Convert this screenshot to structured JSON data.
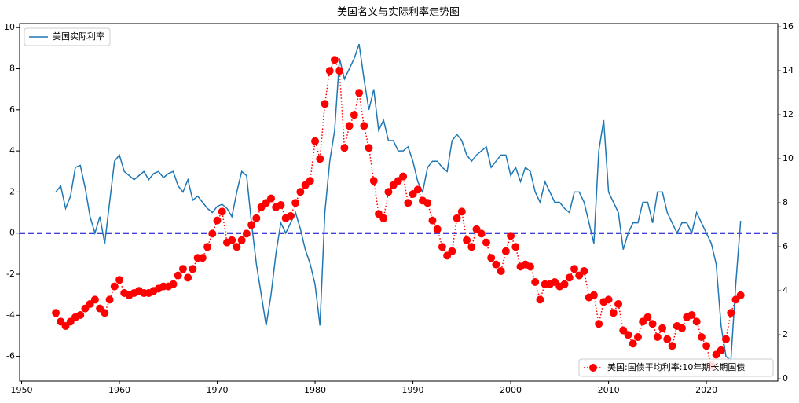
{
  "chart_data": {
    "type": "line",
    "title": "美国名义与实际利率走势图",
    "x": [
      1953.5,
      1954,
      1954.5,
      1955,
      1955.5,
      1956,
      1956.5,
      1957,
      1957.5,
      1958,
      1958.5,
      1959,
      1959.5,
      1960,
      1960.5,
      1961,
      1961.5,
      1962,
      1962.5,
      1963,
      1963.5,
      1964,
      1964.5,
      1965,
      1965.5,
      1966,
      1966.5,
      1967,
      1967.5,
      1968,
      1968.5,
      1969,
      1969.5,
      1970,
      1970.5,
      1971,
      1971.5,
      1972,
      1972.5,
      1973,
      1973.5,
      1974,
      1974.5,
      1975,
      1975.5,
      1976,
      1976.5,
      1977,
      1977.5,
      1978,
      1978.5,
      1979,
      1979.5,
      1980,
      1980.5,
      1981,
      1981.5,
      1982,
      1982.5,
      1983,
      1983.5,
      1984,
      1984.5,
      1985,
      1985.5,
      1986,
      1986.5,
      1987,
      1987.5,
      1988,
      1988.5,
      1989,
      1989.5,
      1990,
      1990.5,
      1991,
      1991.5,
      1992,
      1992.5,
      1993,
      1993.5,
      1994,
      1994.5,
      1995,
      1995.5,
      1996,
      1996.5,
      1997,
      1997.5,
      1998,
      1998.5,
      1999,
      1999.5,
      2000,
      2000.5,
      2001,
      2001.5,
      2002,
      2002.5,
      2003,
      2003.5,
      2004,
      2004.5,
      2005,
      2005.5,
      2006,
      2006.5,
      2007,
      2007.5,
      2008,
      2008.5,
      2009,
      2009.5,
      2010,
      2010.5,
      2011,
      2011.5,
      2012,
      2012.5,
      2013,
      2013.5,
      2014,
      2014.5,
      2015,
      2015.5,
      2016,
      2016.5,
      2017,
      2017.5,
      2018,
      2018.5,
      2019,
      2019.5,
      2020,
      2020.5,
      2021,
      2021.5,
      2022,
      2022.5,
      2023,
      2023.5
    ],
    "series": [
      {
        "name": "美国实际利率",
        "color": "#1f77b4",
        "axis": "y",
        "legend": "upper left",
        "values": [
          2.0,
          2.3,
          1.2,
          1.8,
          3.2,
          3.3,
          2.2,
          0.8,
          0.0,
          0.8,
          -0.5,
          1.5,
          3.5,
          3.8,
          3.0,
          2.8,
          2.6,
          2.8,
          3.0,
          2.6,
          2.9,
          3.0,
          2.7,
          2.9,
          3.0,
          2.3,
          2.0,
          2.6,
          1.6,
          1.8,
          1.5,
          1.2,
          1.0,
          1.3,
          1.4,
          1.2,
          0.8,
          2.0,
          3.0,
          2.8,
          0.5,
          -1.5,
          -3.0,
          -4.5,
          -3.0,
          -1.0,
          0.5,
          0.0,
          0.5,
          1.0,
          0.2,
          -0.8,
          -1.5,
          -2.5,
          -4.5,
          1.0,
          3.5,
          5.0,
          8.5,
          7.5,
          8.0,
          8.5,
          9.2,
          7.5,
          6.0,
          7.0,
          5.0,
          5.5,
          4.5,
          4.5,
          4.0,
          4.0,
          4.2,
          3.5,
          2.5,
          2.0,
          3.2,
          3.5,
          3.5,
          3.2,
          3.0,
          4.5,
          4.8,
          4.5,
          3.8,
          3.5,
          3.8,
          4.0,
          4.2,
          3.2,
          3.5,
          3.8,
          3.8,
          2.8,
          3.2,
          2.5,
          3.2,
          3.0,
          2.0,
          1.5,
          2.5,
          2.0,
          1.5,
          1.5,
          1.2,
          1.0,
          2.0,
          2.0,
          1.5,
          0.5,
          -0.5,
          4.0,
          5.5,
          2.0,
          1.5,
          1.0,
          -0.8,
          0.0,
          0.5,
          0.5,
          1.5,
          1.5,
          0.5,
          2.0,
          2.0,
          1.0,
          0.5,
          0.0,
          0.5,
          0.5,
          0.0,
          1.0,
          0.5,
          0.0,
          -0.5,
          -1.5,
          -4.5,
          -6.0,
          -6.2,
          -2.5,
          0.6
        ]
      },
      {
        "name": "美国:国债平均利率:10年期长期国债",
        "color": "#ff0000",
        "axis": "y2",
        "legend": "lower right",
        "values": [
          3.0,
          2.6,
          2.4,
          2.6,
          2.8,
          2.9,
          3.2,
          3.4,
          3.6,
          3.2,
          3.0,
          3.6,
          4.2,
          4.5,
          3.9,
          3.8,
          3.9,
          4.0,
          3.9,
          3.9,
          4.0,
          4.1,
          4.2,
          4.2,
          4.3,
          4.7,
          5.0,
          4.6,
          5.0,
          5.5,
          5.5,
          6.0,
          6.6,
          7.2,
          7.6,
          6.2,
          6.3,
          6.0,
          6.3,
          6.6,
          7.0,
          7.3,
          7.8,
          8.0,
          8.2,
          7.8,
          7.9,
          7.3,
          7.4,
          8.0,
          8.5,
          8.8,
          9.0,
          10.8,
          10.0,
          12.5,
          14.0,
          14.5,
          14.0,
          10.5,
          11.5,
          12.0,
          13.0,
          11.5,
          10.5,
          9.0,
          7.5,
          7.3,
          8.5,
          8.8,
          9.0,
          9.2,
          8.0,
          8.4,
          8.6,
          8.1,
          8.0,
          7.2,
          6.8,
          6.0,
          5.6,
          5.8,
          7.3,
          7.6,
          6.3,
          6.0,
          6.8,
          6.6,
          6.2,
          5.5,
          5.2,
          4.9,
          5.8,
          6.5,
          6.0,
          5.1,
          5.2,
          5.1,
          4.4,
          3.6,
          4.3,
          4.3,
          4.4,
          4.2,
          4.3,
          4.6,
          5.0,
          4.7,
          4.9,
          3.7,
          3.8,
          2.5,
          3.5,
          3.6,
          3.0,
          3.4,
          2.2,
          2.0,
          1.6,
          1.9,
          2.6,
          2.8,
          2.5,
          1.9,
          2.3,
          1.8,
          1.5,
          2.4,
          2.3,
          2.8,
          2.9,
          2.6,
          1.9,
          1.5,
          0.6,
          1.1,
          1.3,
          1.8,
          3.0,
          3.6,
          3.8
        ]
      }
    ],
    "hlines": [
      {
        "value": 0,
        "color": "#0000cc"
      }
    ],
    "xlim": [
      1949.8,
      2027.3
    ],
    "xticks": [
      1950,
      1960,
      1970,
      1980,
      1990,
      2000,
      2010,
      2020
    ],
    "ylim": [
      -7.2,
      10.2
    ],
    "yticks": [
      -6,
      -4,
      -2,
      0,
      2,
      4,
      6,
      8,
      10
    ],
    "y2lim": [
      -0.1,
      16.15
    ],
    "y2ticks": [
      0,
      2,
      4,
      6,
      8,
      10,
      12,
      14,
      16
    ]
  }
}
